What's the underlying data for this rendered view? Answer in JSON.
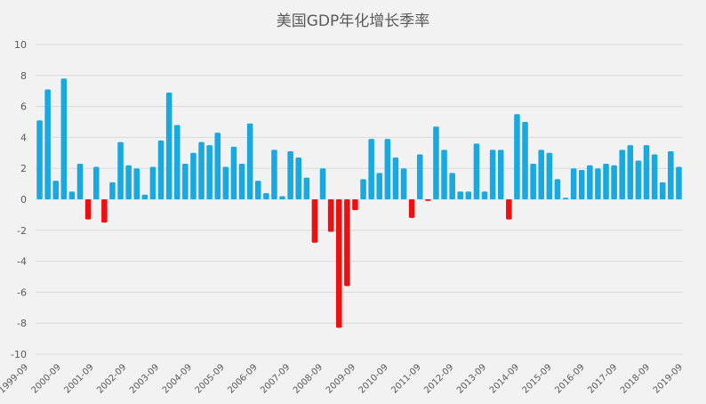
{
  "chart_data": {
    "type": "bar",
    "title": "美国GDP年化增长季率",
    "xlabel": "",
    "ylabel": "",
    "ylim": [
      -10,
      10
    ],
    "yticks": [
      10,
      8,
      6,
      4,
      2,
      0,
      -2,
      -4,
      -6,
      -8,
      -10
    ],
    "grid": true,
    "colors": {
      "positive": "#17a9e0",
      "negative": "#ee1010"
    },
    "x_tick_labels": [
      "1999-09",
      "2000-09",
      "2001-09",
      "2002-09",
      "2003-09",
      "2004-09",
      "2005-09",
      "2006-09",
      "2007-09",
      "2008-09",
      "2009-09",
      "2010-09",
      "2011-09",
      "2012-09",
      "2013-09",
      "2014-09",
      "2015-09",
      "2016-09",
      "2017-09",
      "2018-09",
      "2019-09"
    ],
    "values": [
      5.1,
      7.1,
      1.2,
      7.8,
      0.5,
      2.3,
      -1.3,
      2.1,
      -1.5,
      1.1,
      3.7,
      2.2,
      2.0,
      0.3,
      2.1,
      3.8,
      6.9,
      4.8,
      2.3,
      3.0,
      3.7,
      3.5,
      4.3,
      2.1,
      3.4,
      2.3,
      4.9,
      1.2,
      0.4,
      3.2,
      0.2,
      3.1,
      2.7,
      1.4,
      -2.8,
      2.0,
      -2.1,
      -8.3,
      -5.6,
      -0.7,
      1.3,
      3.9,
      1.7,
      3.9,
      2.7,
      2.0,
      -1.2,
      2.9,
      -0.1,
      4.7,
      3.2,
      1.7,
      0.5,
      0.5,
      3.6,
      0.5,
      3.2,
      3.2,
      -1.3,
      5.5,
      5.0,
      2.3,
      3.2,
      3.0,
      1.3,
      0.1,
      2.0,
      1.9,
      2.2,
      2.0,
      2.3,
      2.2,
      3.2,
      3.5,
      2.5,
      3.5,
      2.9,
      1.1,
      3.1,
      2.1
    ]
  }
}
